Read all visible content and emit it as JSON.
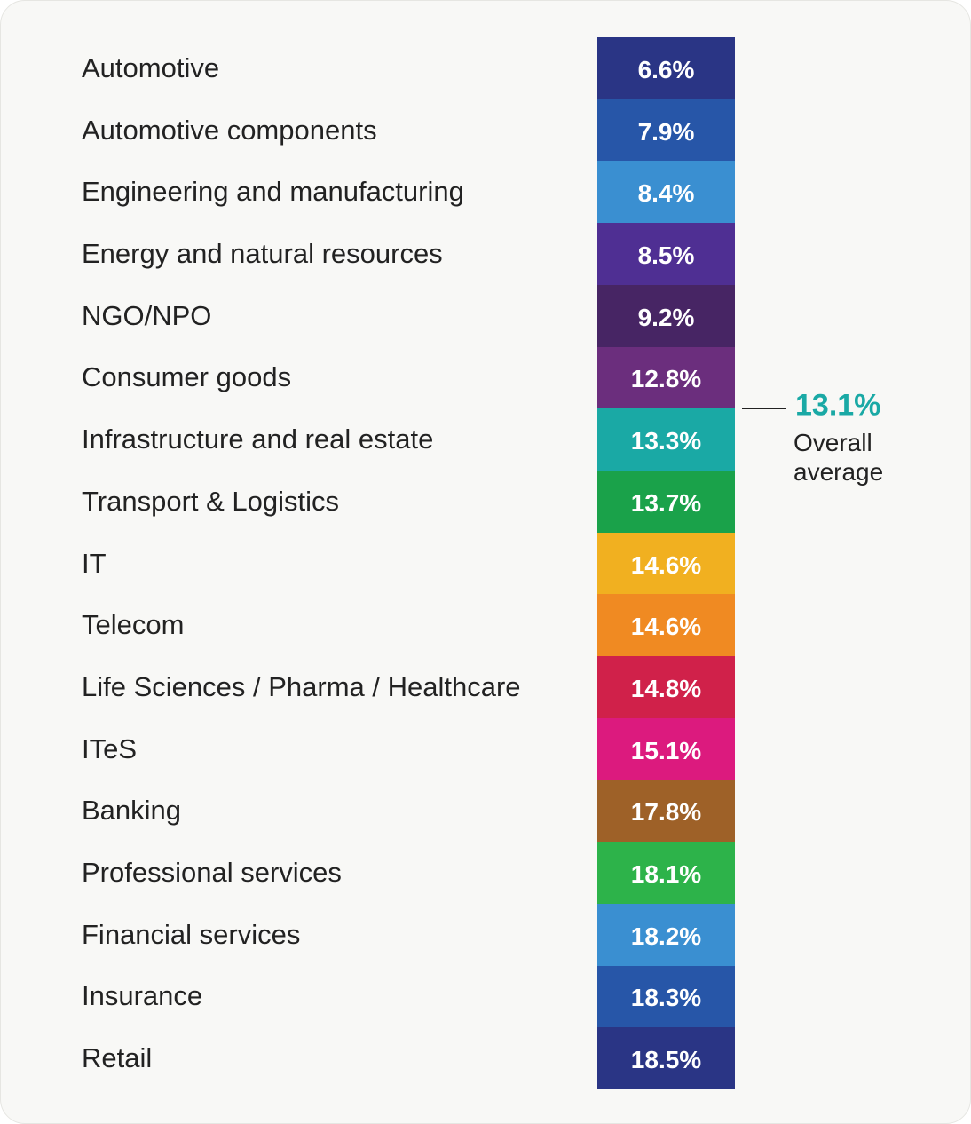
{
  "chart_data": {
    "type": "color-column",
    "categories": [
      "Automotive",
      "Automotive components",
      "Engineering and manufacturing",
      "Energy and natural resources",
      "NGO/NPO",
      "Consumer goods",
      "Infrastructure and real estate",
      "Transport & Logistics",
      "IT",
      "Telecom",
      "Life Sciences / Pharma / Healthcare",
      "ITeS",
      "Banking",
      "Professional services",
      "Financial services",
      "Insurance",
      "Retail"
    ],
    "values": [
      6.6,
      7.9,
      8.4,
      8.5,
      9.2,
      12.8,
      13.3,
      13.7,
      14.6,
      14.6,
      14.8,
      15.1,
      17.8,
      18.1,
      18.2,
      18.3,
      18.5
    ],
    "value_labels": [
      "6.6%",
      "7.9%",
      "8.4%",
      "8.5%",
      "9.2%",
      "12.8%",
      "13.3%",
      "13.7%",
      "14.6%",
      "14.6%",
      "14.8%",
      "15.1%",
      "17.8%",
      "18.1%",
      "18.2%",
      "18.3%",
      "18.5%"
    ],
    "colors": [
      "#2a3585",
      "#2756a8",
      "#3a8fd1",
      "#4f2f93",
      "#472564",
      "#6b2e7d",
      "#1aa9a5",
      "#1aa24a",
      "#f1b020",
      "#f08a22",
      "#d0214a",
      "#dc1a7e",
      "#9e6128",
      "#2db34a",
      "#3a8fd1",
      "#2756a8",
      "#2a3585"
    ],
    "average": {
      "value": 13.1,
      "label": "13.1%",
      "text": "Overall average",
      "color": "#1aa9a5"
    }
  }
}
